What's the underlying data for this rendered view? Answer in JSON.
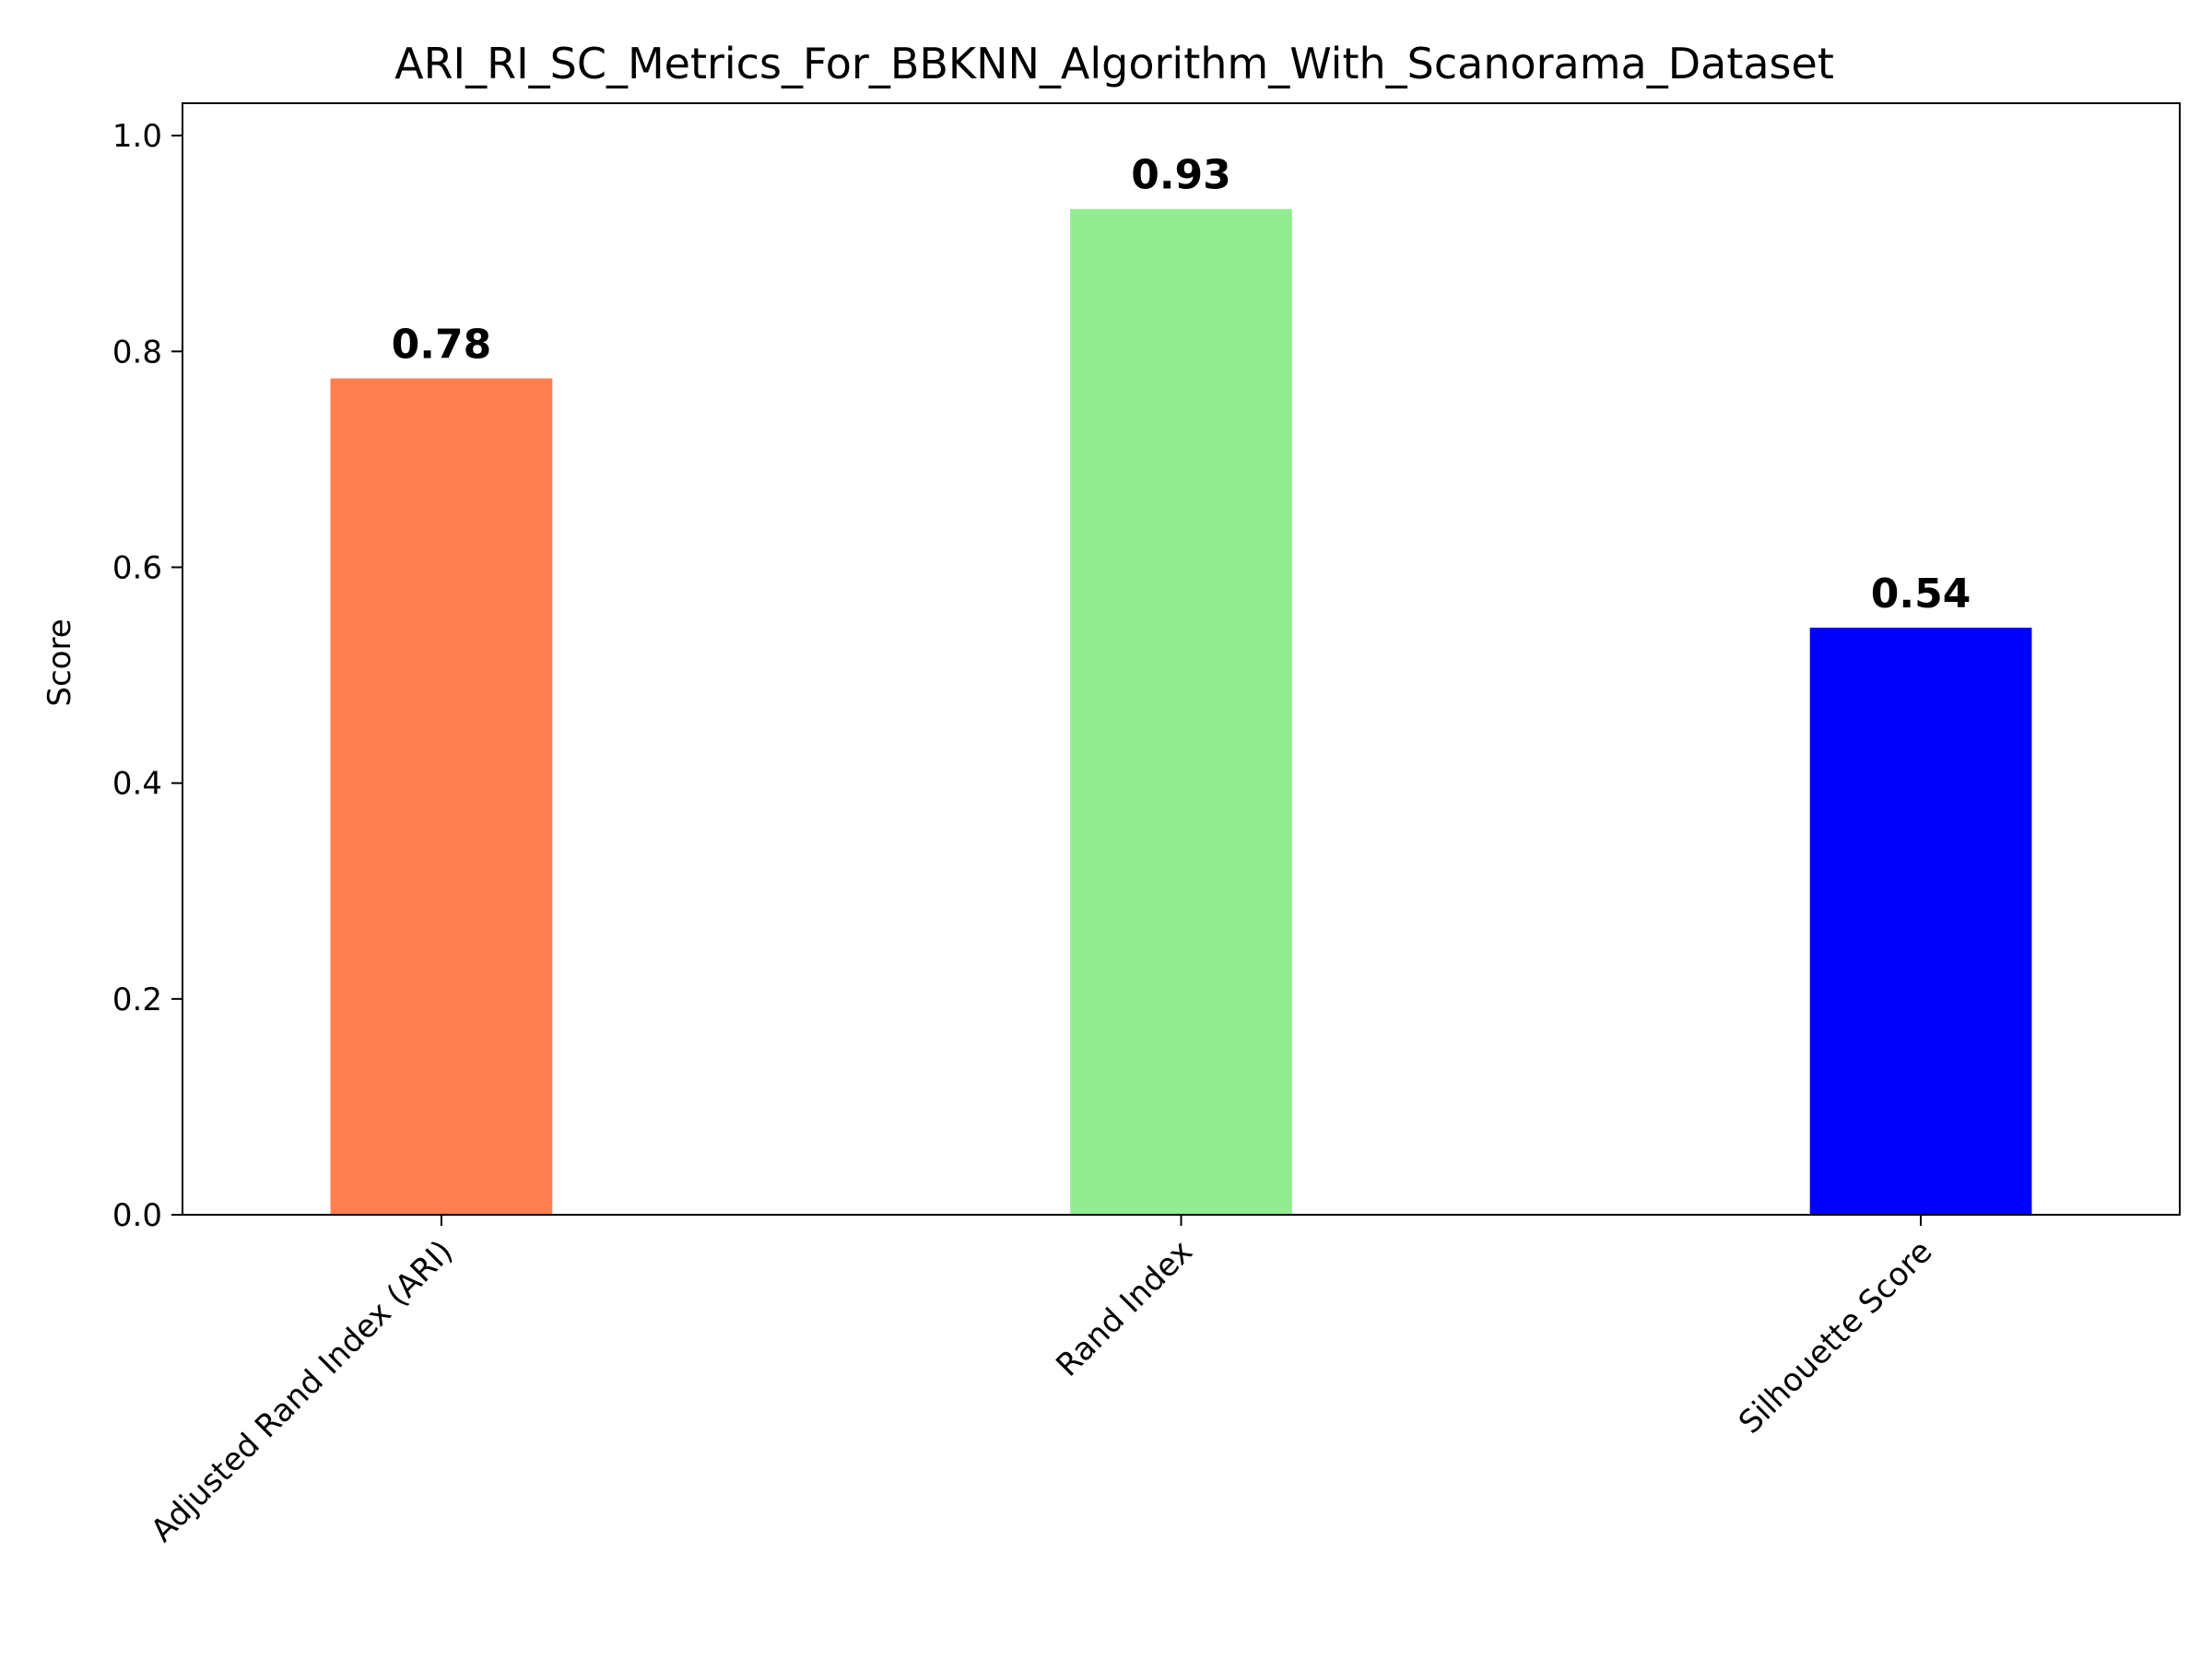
{
  "chart_data": {
    "type": "bar",
    "title": "ARI_RI_SC_Metrics_For_BBKNN_Algorithm_With_Scanorama_Dataset",
    "xlabel": "",
    "ylabel": "Score",
    "categories": [
      "Adjusted Rand Index (ARI)",
      "Rand Index",
      "Silhouette Score"
    ],
    "values": [
      0.775,
      0.932,
      0.544
    ],
    "value_labels": [
      "0.78",
      "0.93",
      "0.54"
    ],
    "colors": [
      "#ff7f50",
      "#90ee90",
      "#0000ff"
    ],
    "ylim": [
      0,
      1.03
    ],
    "yticks": [
      0.0,
      0.2,
      0.4,
      0.6,
      0.8,
      1.0
    ],
    "ytick_labels": [
      "0.0",
      "0.2",
      "0.4",
      "0.6",
      "0.8",
      "1.0"
    ],
    "grid": false,
    "legend": "none"
  }
}
